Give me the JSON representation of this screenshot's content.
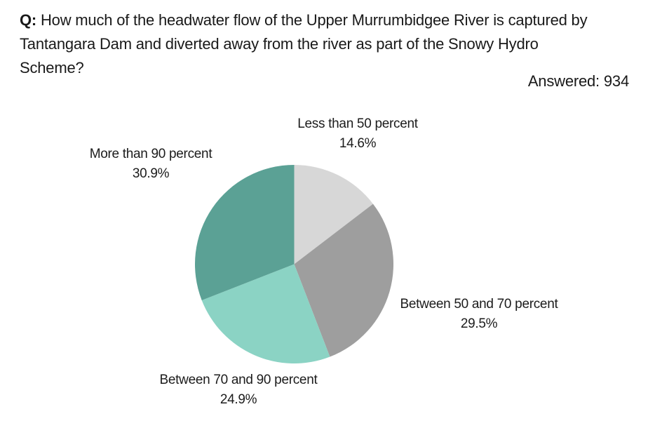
{
  "header": {
    "q_prefix": "Q:",
    "question": "How much of the headwater flow of the Upper Murrumbidgee River is captured by Tantangara Dam and diverted away from the river as part of the Snowy Hydro Scheme?",
    "answered": "Answered: 934",
    "answered_count": 934
  },
  "chart_data": {
    "type": "pie",
    "title": "",
    "start_angle_deg": 0,
    "direction": "clockwise",
    "radius_px": 141.5,
    "categories": [
      "Less than 50 percent",
      "Between 50 and 70 percent",
      "Between 70 and 90 percent",
      "More than 90 percent"
    ],
    "values": [
      14.6,
      29.5,
      24.9,
      30.9
    ],
    "unit": "%",
    "slices": [
      {
        "label": "Less than 50 percent",
        "value": 14.6,
        "pct_label": "14.6%",
        "color": "#d7d7d7"
      },
      {
        "label": "Between 50 and 70 percent",
        "value": 29.5,
        "pct_label": "29.5%",
        "color": "#9e9e9e"
      },
      {
        "label": "Between 70 and 90 percent",
        "value": 24.9,
        "pct_label": "24.9%",
        "color": "#8bd3c4"
      },
      {
        "label": "More than 90 percent",
        "value": 30.9,
        "pct_label": "30.9%",
        "color": "#5ba195"
      }
    ]
  }
}
